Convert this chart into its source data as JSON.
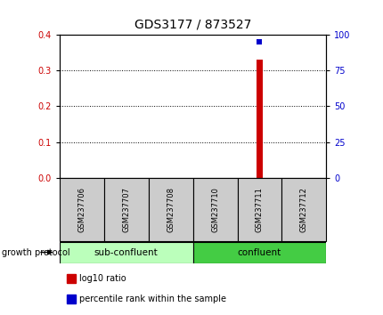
{
  "title": "GDS3177 / 873527",
  "samples": [
    "GSM237706",
    "GSM237707",
    "GSM237708",
    "GSM237710",
    "GSM237711",
    "GSM237712"
  ],
  "bar_values": [
    0.0,
    0.0,
    0.0,
    0.0,
    0.33,
    0.0
  ],
  "percentile_values": [
    null,
    null,
    null,
    null,
    95,
    null
  ],
  "bar_color": "#cc0000",
  "percentile_color": "#0000cc",
  "ylim_left": [
    0,
    0.4
  ],
  "ylim_right": [
    0,
    100
  ],
  "yticks_left": [
    0,
    0.1,
    0.2,
    0.3,
    0.4
  ],
  "yticks_right": [
    0,
    25,
    50,
    75,
    100
  ],
  "groups": [
    {
      "label": "sub-confluent",
      "start": 0,
      "end": 3,
      "color": "#bbffbb"
    },
    {
      "label": "confluent",
      "start": 3,
      "end": 6,
      "color": "#44cc44"
    }
  ],
  "group_label": "growth protocol",
  "legend_items": [
    {
      "label": "log10 ratio",
      "color": "#cc0000"
    },
    {
      "label": "percentile rank within the sample",
      "color": "#0000cc"
    }
  ],
  "background_color": "#ffffff",
  "plot_bg": "#ffffff",
  "grid_color": "#000000",
  "sample_box_color": "#cccccc",
  "title_fontsize": 10,
  "tick_fontsize": 7,
  "label_fontsize": 8
}
